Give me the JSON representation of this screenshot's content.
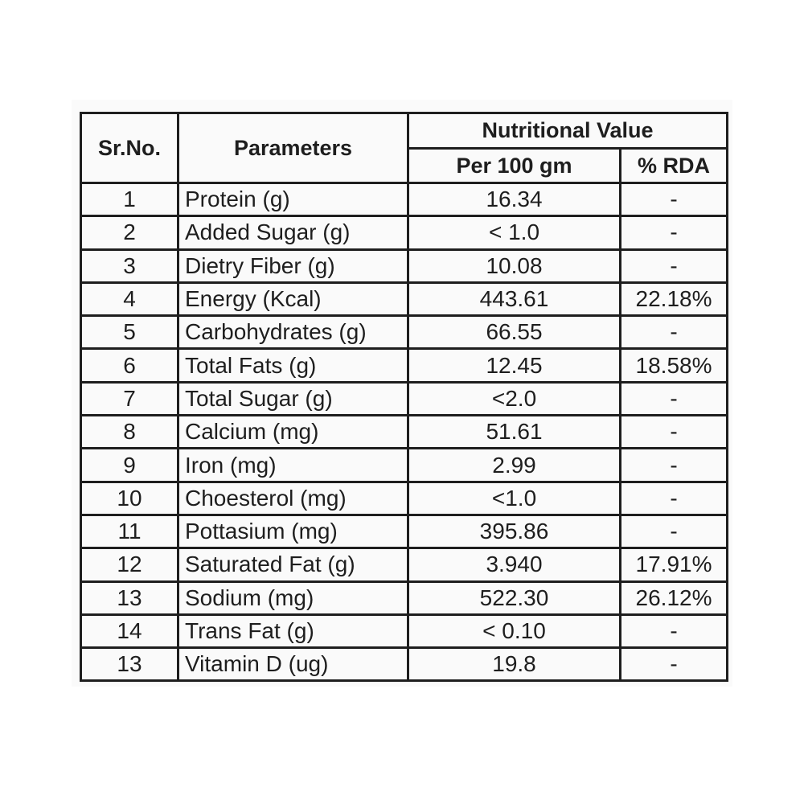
{
  "header": {
    "sr_no": "Sr.No.",
    "parameters": "Parameters",
    "nutritional_value": "Nutritional Value",
    "per_100gm": "Per 100 gm",
    "rda": "% RDA"
  },
  "rows": [
    {
      "sr": "1",
      "param": "Protein (g)",
      "value": "16.34",
      "rda": "-"
    },
    {
      "sr": "2",
      "param": "Added Sugar (g)",
      "value": "< 1.0",
      "rda": "-"
    },
    {
      "sr": "3",
      "param": "Dietry Fiber (g)",
      "value": "10.08",
      "rda": "-"
    },
    {
      "sr": "4",
      "param": "Energy (Kcal)",
      "value": "443.61",
      "rda": "22.18%"
    },
    {
      "sr": "5",
      "param": "Carbohydrates (g)",
      "value": "66.55",
      "rda": "-"
    },
    {
      "sr": "6",
      "param": "Total Fats (g)",
      "value": "12.45",
      "rda": "18.58%"
    },
    {
      "sr": "7",
      "param": "Total Sugar (g)",
      "value": "<2.0",
      "rda": "-"
    },
    {
      "sr": "8",
      "param": "Calcium (mg)",
      "value": "51.61",
      "rda": "-"
    },
    {
      "sr": "9",
      "param": "Iron (mg)",
      "value": "2.99",
      "rda": "-"
    },
    {
      "sr": "10",
      "param": "Choesterol (mg)",
      "value": "<1.0",
      "rda": "-"
    },
    {
      "sr": "11",
      "param": "Pottasium (mg)",
      "value": "395.86",
      "rda": "-"
    },
    {
      "sr": "12",
      "param": "Saturated Fat (g)",
      "value": "3.940",
      "rda": "17.91%"
    },
    {
      "sr": "13",
      "param": "Sodium (mg)",
      "value": "522.30",
      "rda": "26.12%"
    },
    {
      "sr": "14",
      "param": "Trans Fat (g)",
      "value": "< 0.10",
      "rda": "-"
    },
    {
      "sr": "13",
      "param": "Vitamin D (ug)",
      "value": "19.8",
      "rda": "-"
    }
  ]
}
